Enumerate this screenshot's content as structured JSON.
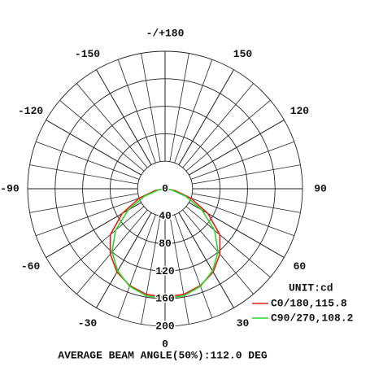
{
  "chart_data": {
    "type": "polar",
    "ylim": [
      0,
      200
    ],
    "yticks": [
      0,
      40,
      80,
      120,
      160,
      200
    ],
    "xticks": [
      0,
      30,
      60,
      90,
      120,
      150,
      {
        "value": 180,
        "label": "-/+180"
      },
      -150,
      -120,
      -90,
      -60,
      -30
    ],
    "unit": "UNIT:cd",
    "footer": "AVERAGE BEAM ANGLE(50%):112.0 DEG",
    "series": [
      {
        "name": "C0/180,115.8",
        "color": "#e0201c",
        "x": [
          -90,
          -80,
          -70,
          -60,
          -50,
          -40,
          -30,
          -20,
          -10,
          0,
          10,
          20,
          30,
          40,
          50,
          60,
          70,
          80,
          90
        ],
        "values": [
          0,
          14,
          40,
          72,
          104,
          124,
          140,
          150,
          156,
          158,
          156,
          150,
          140,
          124,
          104,
          72,
          40,
          14,
          0
        ]
      },
      {
        "name": "C90/270,108.2",
        "color": "#2bd62b",
        "x": [
          -90,
          -80,
          -70,
          -60,
          -50,
          -40,
          -30,
          -20,
          -10,
          0,
          10,
          20,
          30,
          40,
          50,
          60,
          70,
          80,
          90
        ],
        "values": [
          0,
          10,
          32,
          62,
          94,
          120,
          138,
          151,
          158,
          160,
          158,
          151,
          138,
          120,
          94,
          62,
          32,
          10,
          0
        ]
      }
    ]
  }
}
